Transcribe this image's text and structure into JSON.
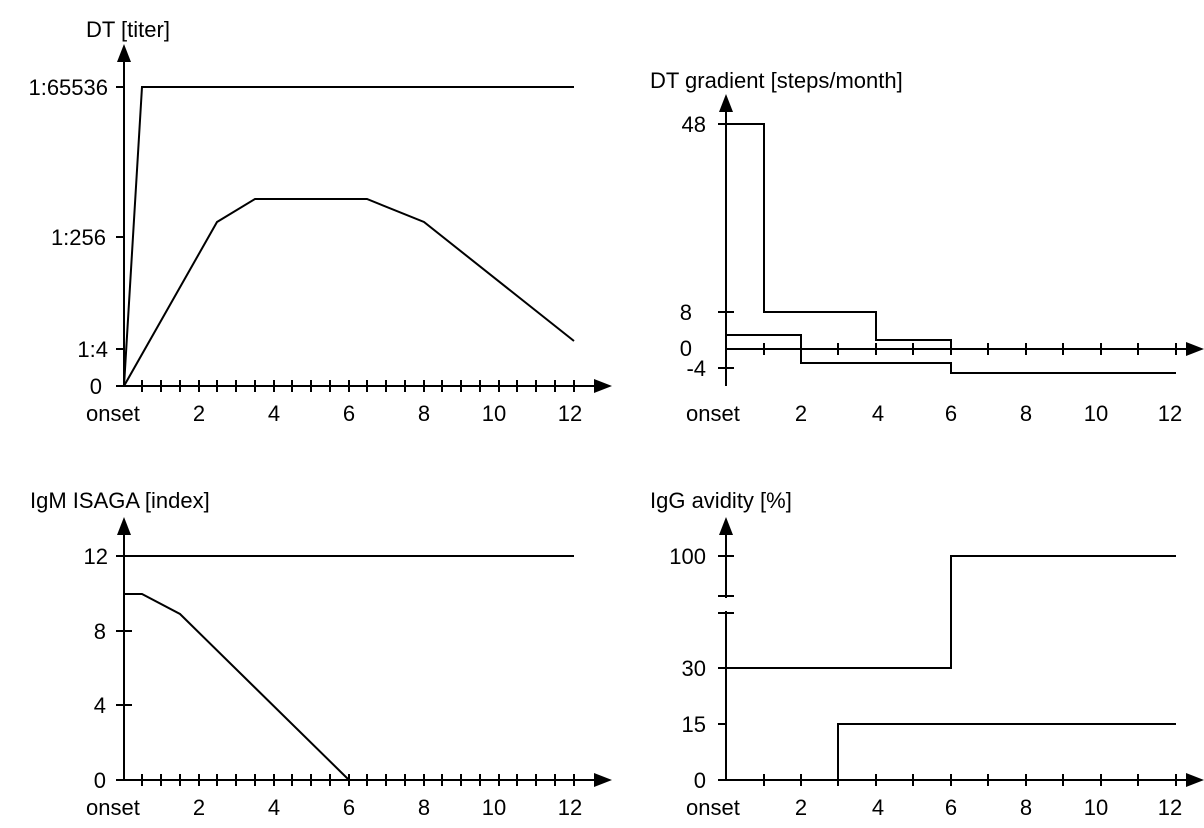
{
  "chart_data": [
    {
      "type": "line",
      "title": "DT [titer]",
      "x_tick_labels": [
        "onset",
        "2",
        "4",
        "6",
        "8",
        "10",
        "12"
      ],
      "y_tick_labels": [
        "0",
        "1:4",
        "1:256",
        "1:65536"
      ],
      "series": [
        {
          "points": [
            [
              0,
              0
            ],
            [
              0.5,
              16
            ],
            [
              12,
              16
            ]
          ]
        },
        {
          "points": [
            [
              0,
              0
            ],
            [
              2.5,
              9.5
            ],
            [
              3.5,
              10.5
            ],
            [
              6.5,
              10.5
            ],
            [
              8,
              9.5
            ],
            [
              12,
              2.8
            ]
          ]
        }
      ]
    },
    {
      "type": "line",
      "title": "DT gradient [steps/month]",
      "x_tick_labels": [
        "onset",
        "2",
        "4",
        "6",
        "8",
        "10",
        "12"
      ],
      "y_tick_labels": [
        "48",
        "8",
        "0",
        "-4"
      ],
      "series": [
        {
          "points": [
            [
              0,
              48
            ],
            [
              1,
              48
            ],
            [
              1,
              8
            ],
            [
              4,
              8
            ],
            [
              4,
              2
            ],
            [
              6,
              2
            ],
            [
              6,
              0
            ],
            [
              12,
              0
            ]
          ]
        },
        {
          "points": [
            [
              0,
              3
            ],
            [
              2,
              3
            ],
            [
              2,
              -3
            ],
            [
              6,
              -3
            ],
            [
              6,
              -5
            ],
            [
              12,
              -5
            ]
          ]
        },
        {
          "points": [
            [
              0,
              0
            ],
            [
              12,
              0
            ]
          ]
        }
      ]
    },
    {
      "type": "line",
      "title": "IgM ISAGA [index]",
      "x_tick_labels": [
        "onset",
        "2",
        "4",
        "6",
        "8",
        "10",
        "12"
      ],
      "y_tick_labels": [
        "0",
        "4",
        "8",
        "12"
      ],
      "series": [
        {
          "points": [
            [
              0,
              12
            ],
            [
              12,
              12
            ]
          ]
        },
        {
          "points": [
            [
              0,
              10
            ],
            [
              0.5,
              10
            ],
            [
              1.5,
              9
            ],
            [
              6,
              0
            ]
          ]
        }
      ]
    },
    {
      "type": "line",
      "title": "IgG avidity [%]",
      "x_tick_labels": [
        "onset",
        "2",
        "4",
        "6",
        "8",
        "10",
        "12"
      ],
      "y_tick_labels": [
        "0",
        "15",
        "30",
        "100"
      ],
      "series": [
        {
          "points": [
            [
              0,
              30
            ],
            [
              6,
              30
            ],
            [
              6,
              100
            ],
            [
              12,
              100
            ]
          ]
        },
        {
          "points": [
            [
              3,
              0
            ],
            [
              3,
              15
            ],
            [
              12,
              15
            ]
          ]
        }
      ]
    }
  ]
}
